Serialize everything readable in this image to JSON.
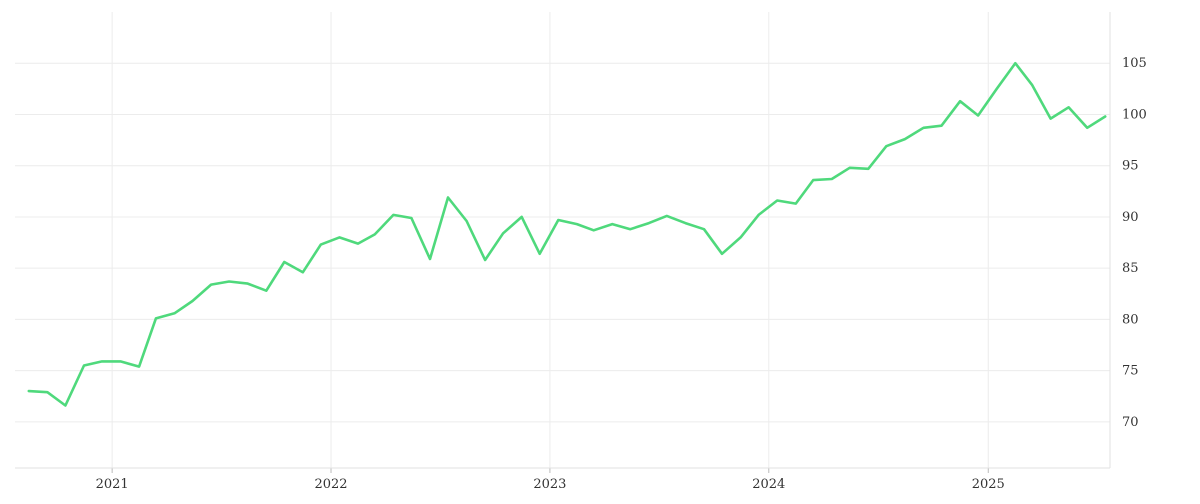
{
  "chart_data": {
    "type": "line",
    "title": "",
    "xlabel": "",
    "ylabel": "",
    "x_start": "2020-08",
    "x_step": "month",
    "x_ticks": [
      "2021",
      "2022",
      "2023",
      "2024",
      "2025"
    ],
    "x_range": [
      "2020-07-23",
      "2025-07-23"
    ],
    "y_ticks": [
      70,
      75,
      80,
      85,
      90,
      95,
      100,
      105
    ],
    "ylim": [
      65.5,
      110.0
    ],
    "y_axis_position": "right",
    "grid": true,
    "legend": "none",
    "series": [
      {
        "color": "#4fd97c",
        "values": [
          73.0,
          72.9,
          71.6,
          75.5,
          75.9,
          75.9,
          75.4,
          80.1,
          80.6,
          81.8,
          83.4,
          83.7,
          83.5,
          82.8,
          85.6,
          84.6,
          87.3,
          88.0,
          87.4,
          88.3,
          90.2,
          89.9,
          85.9,
          91.9,
          89.6,
          85.8,
          88.4,
          90.0,
          86.4,
          89.7,
          89.3,
          88.7,
          89.3,
          88.8,
          89.4,
          90.1,
          89.4,
          88.8,
          86.4,
          88.0,
          90.2,
          91.6,
          91.3,
          93.6,
          93.7,
          94.8,
          94.7,
          96.9,
          97.6,
          98.7,
          98.9,
          101.3,
          99.9,
          102.5,
          105.0,
          102.9,
          99.6,
          100.7,
          98.7,
          99.8
        ]
      }
    ]
  }
}
